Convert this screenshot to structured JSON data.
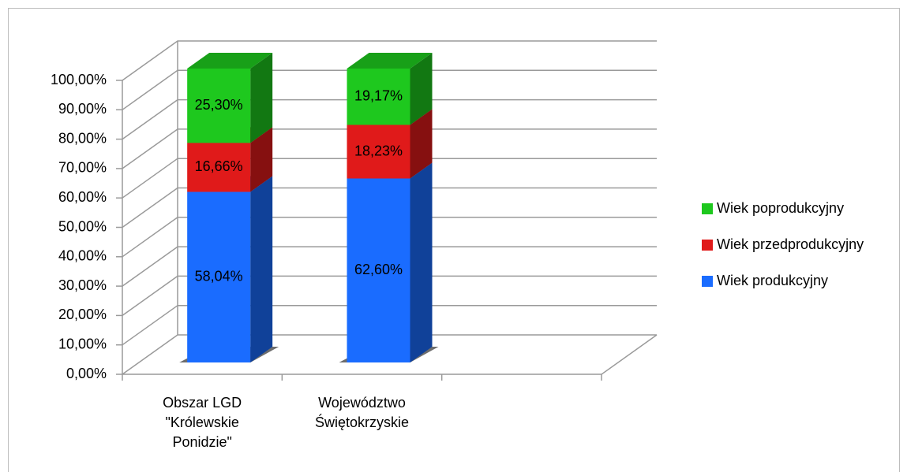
{
  "chart_data": {
    "type": "bar3d_stacked",
    "categories": [
      [
        "Obszar LGD",
        "\"Królewskie",
        "Ponidzie\""
      ],
      [
        "Województwo",
        "Świętokrzyskie"
      ]
    ],
    "series": [
      {
        "name": "Wiek produkcyjny",
        "color": "#1a6cff",
        "values": [
          58.04,
          62.6
        ],
        "value_labels": [
          "58,04%",
          "62,60%"
        ]
      },
      {
        "name": "Wiek przedprodukcyjny",
        "color": "#e01a1a",
        "values": [
          16.66,
          18.23
        ],
        "value_labels": [
          "16,66%",
          "18,23%"
        ]
      },
      {
        "name": "Wiek poprodukcyjny",
        "color": "#1ec81e",
        "values": [
          25.3,
          19.17
        ],
        "value_labels": [
          "25,30%",
          "19,17%"
        ]
      }
    ],
    "ylim": [
      0,
      100
    ],
    "yticks": [
      {
        "value": 0,
        "label": "0,00%"
      },
      {
        "value": 10,
        "label": "10,00%"
      },
      {
        "value": 20,
        "label": "20,00%"
      },
      {
        "value": 30,
        "label": "30,00%"
      },
      {
        "value": 40,
        "label": "40,00%"
      },
      {
        "value": 50,
        "label": "50,00%"
      },
      {
        "value": 60,
        "label": "60,00%"
      },
      {
        "value": 70,
        "label": "70,00%"
      },
      {
        "value": 80,
        "label": "80,00%"
      },
      {
        "value": 90,
        "label": "90,00%"
      },
      {
        "value": 100,
        "label": "100,00%"
      }
    ],
    "grid": true,
    "legend": "right"
  }
}
